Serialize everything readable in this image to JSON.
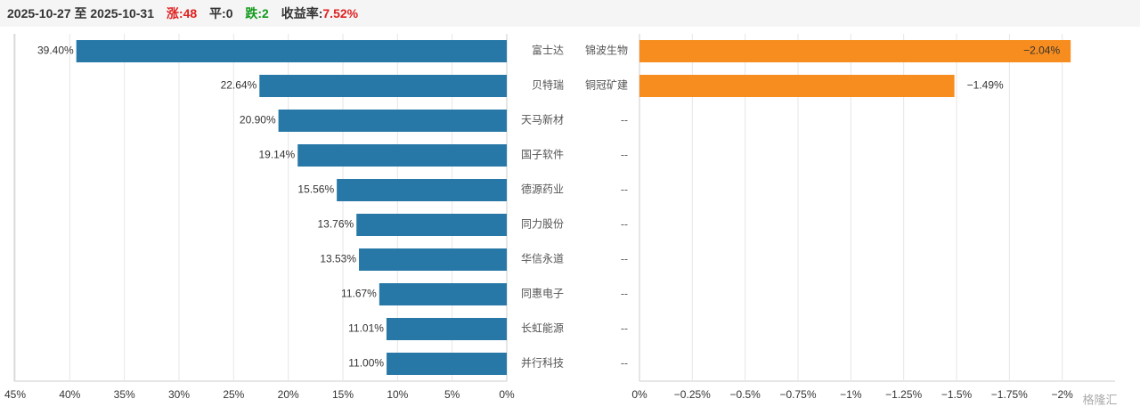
{
  "header": {
    "date_range": "2025-10-27 至 2025-10-31",
    "up": "涨:48",
    "flat": "平:0",
    "down": "跌:2",
    "return_label": "收益率:",
    "return_value": "7.52%"
  },
  "chart_data": [
    {
      "type": "hbar",
      "color": "#2878a7",
      "categories": [
        "富士达",
        "贝特瑞",
        "天马新材",
        "国子软件",
        "德源药业",
        "同力股份",
        "华信永道",
        "同惠电子",
        "长虹能源",
        "并行科技"
      ],
      "values": [
        39.4,
        22.64,
        20.9,
        19.14,
        15.56,
        13.76,
        13.53,
        11.67,
        11.01,
        11.0
      ],
      "value_labels": [
        "39.40%",
        "22.64%",
        "20.90%",
        "19.14%",
        "15.56%",
        "13.76%",
        "13.53%",
        "11.67%",
        "11.01%",
        "11.00%"
      ],
      "xlim": [
        45,
        0
      ],
      "xticks": [
        {
          "value": 45,
          "label": "45%"
        },
        {
          "value": 40,
          "label": "40%"
        },
        {
          "value": 35,
          "label": "35%"
        },
        {
          "value": 30,
          "label": "30%"
        },
        {
          "value": 25,
          "label": "25%"
        },
        {
          "value": 20,
          "label": "20%"
        },
        {
          "value": 15,
          "label": "15%"
        },
        {
          "value": 10,
          "label": "10%"
        },
        {
          "value": 5,
          "label": "5%"
        },
        {
          "value": 0,
          "label": "0%"
        }
      ],
      "grid": true
    },
    {
      "type": "hbar",
      "color": "#f78d1e",
      "categories": [
        "锦波生物",
        "铜冠矿建",
        "--",
        "--",
        "--",
        "--",
        "--",
        "--",
        "--",
        "--"
      ],
      "values": [
        -2.04,
        -1.49,
        null,
        null,
        null,
        null,
        null,
        null,
        null,
        null
      ],
      "value_labels": [
        "−2.04%",
        "−1.49%",
        null,
        null,
        null,
        null,
        null,
        null,
        null,
        null
      ],
      "xlim": [
        0,
        -2.25
      ],
      "xticks": [
        {
          "value": 0,
          "label": "0%"
        },
        {
          "value": -0.25,
          "label": "−0.25%"
        },
        {
          "value": -0.5,
          "label": "−0.5%"
        },
        {
          "value": -0.75,
          "label": "−0.75%"
        },
        {
          "value": -1,
          "label": "−1%"
        },
        {
          "value": -1.25,
          "label": "−1.25%"
        },
        {
          "value": -1.5,
          "label": "−1.5%"
        },
        {
          "value": -1.75,
          "label": "−1.75%"
        },
        {
          "value": -2,
          "label": "−2%"
        }
      ],
      "grid": true
    }
  ],
  "watermark": "格隆汇"
}
